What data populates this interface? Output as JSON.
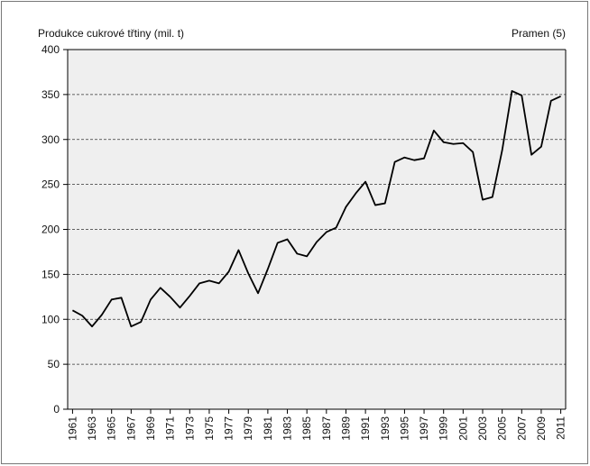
{
  "chart_data": {
    "type": "line",
    "title": "Produkce cukrové třtiny (mil. t)",
    "annotation": "Pramen (5)",
    "x": [
      1961,
      1962,
      1963,
      1964,
      1965,
      1966,
      1967,
      1968,
      1969,
      1970,
      1971,
      1972,
      1973,
      1974,
      1975,
      1976,
      1977,
      1978,
      1979,
      1980,
      1981,
      1982,
      1983,
      1984,
      1985,
      1986,
      1987,
      1988,
      1989,
      1990,
      1991,
      1992,
      1993,
      1994,
      1995,
      1996,
      1997,
      1998,
      1999,
      2000,
      2001,
      2002,
      2003,
      2004,
      2005,
      2006,
      2007,
      2008,
      2009,
      2010,
      2011
    ],
    "series": [
      {
        "color": "#000000",
        "values": [
          110,
          104,
          92,
          105,
          122,
          124,
          92,
          97,
          122,
          135,
          125,
          113,
          126,
          140,
          143,
          140,
          153,
          177,
          151,
          129,
          156,
          185,
          189,
          173,
          170,
          186,
          197,
          202,
          225,
          240,
          253,
          227,
          229,
          275,
          280,
          277,
          279,
          310,
          297,
          295,
          296,
          286,
          233,
          236,
          288,
          354,
          349,
          283,
          292,
          343,
          348
        ]
      }
    ],
    "xlim": [
      1960.5,
      2011.5
    ],
    "xticks": [
      1961,
      1963,
      1965,
      1967,
      1969,
      1971,
      1973,
      1975,
      1977,
      1979,
      1981,
      1983,
      1985,
      1987,
      1989,
      1991,
      1993,
      1995,
      1997,
      1999,
      2001,
      2003,
      2005,
      2007,
      2009,
      2011
    ],
    "ylim": [
      0,
      400
    ],
    "yticks": [
      0,
      50,
      100,
      150,
      200,
      250,
      300,
      350,
      400
    ],
    "grid": true
  }
}
